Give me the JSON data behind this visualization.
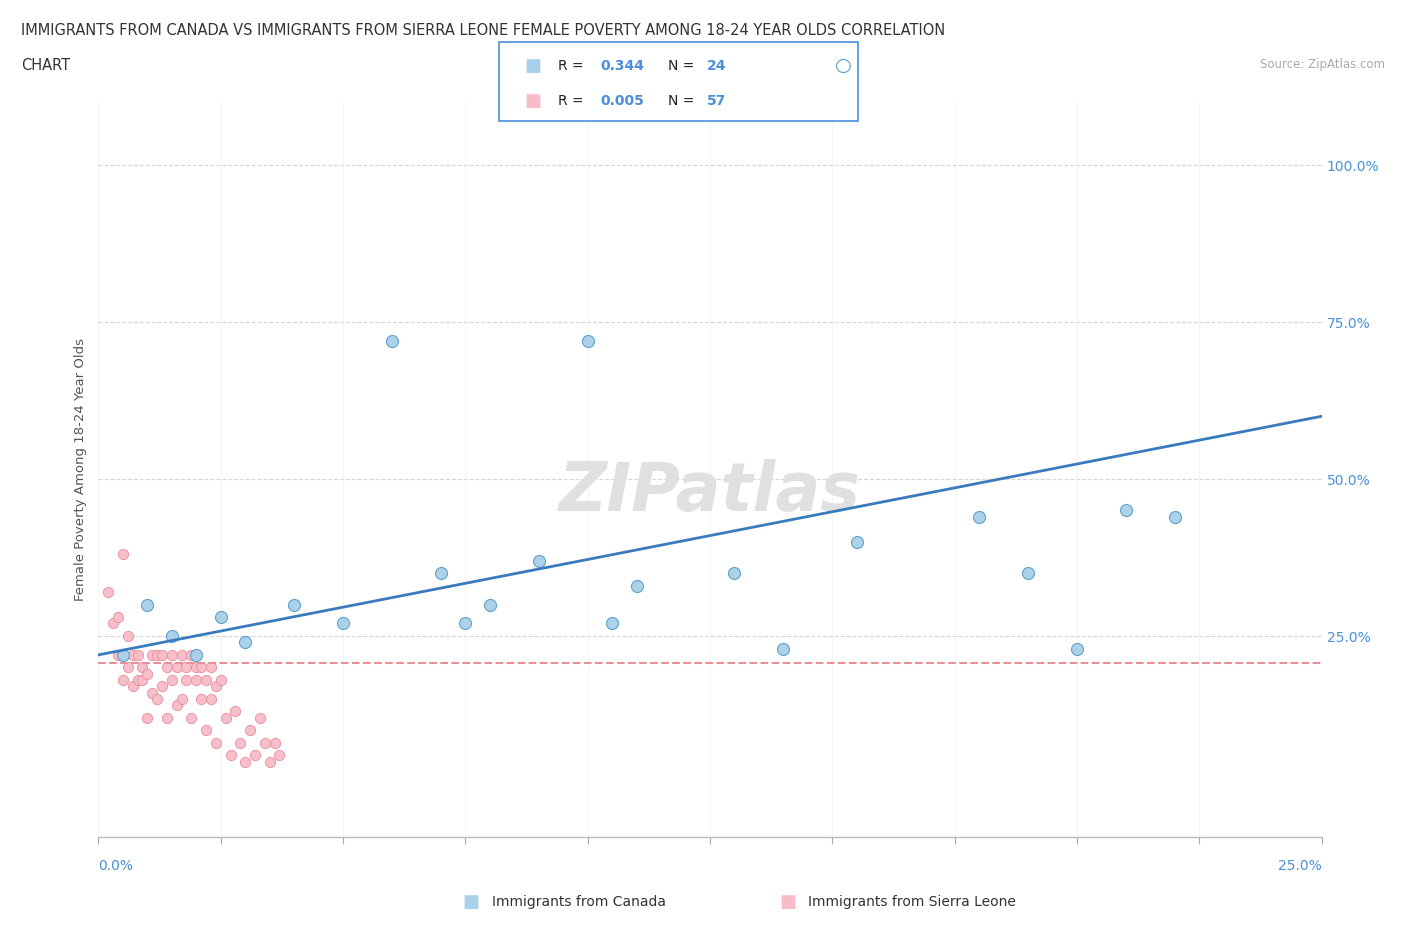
{
  "title_line1": "IMMIGRANTS FROM CANADA VS IMMIGRANTS FROM SIERRA LEONE FEMALE POVERTY AMONG 18-24 YEAR OLDS CORRELATION",
  "title_line2": "CHART",
  "source": "Source: ZipAtlas.com",
  "ylabel": "Female Poverty Among 18-24 Year Olds",
  "ytick_labels": [
    "25.0%",
    "50.0%",
    "75.0%",
    "100.0%"
  ],
  "ytick_values": [
    0.25,
    0.5,
    0.75,
    1.0
  ],
  "xlim": [
    0.0,
    0.25
  ],
  "ylim": [
    -0.07,
    1.1
  ],
  "canada_R": 0.344,
  "canada_N": 24,
  "sierraleone_R": 0.005,
  "sierraleone_N": 57,
  "canada_color": "#a8d0e8",
  "sierraleone_color": "#f7bcc8",
  "canada_edge_color": "#5b9ec9",
  "sierraleone_edge_color": "#e88898",
  "canada_line_color": "#3a7bbf",
  "sierraleone_line_color": "#e8909a",
  "tick_color": "#4a90d9",
  "watermark_color": "#dddddd",
  "legend_edge_color": "#4a90d9",
  "canada_x": [
    0.005,
    0.01,
    0.015,
    0.02,
    0.025,
    0.03,
    0.04,
    0.05,
    0.06,
    0.07,
    0.075,
    0.08,
    0.09,
    0.1,
    0.105,
    0.11,
    0.13,
    0.14,
    0.155,
    0.18,
    0.19,
    0.2,
    0.21,
    0.22
  ],
  "canada_y": [
    0.22,
    0.3,
    0.25,
    0.22,
    0.28,
    0.24,
    0.3,
    0.27,
    0.72,
    0.35,
    0.27,
    0.3,
    0.37,
    0.72,
    0.27,
    0.33,
    0.35,
    0.23,
    0.4,
    0.44,
    0.35,
    0.23,
    0.45,
    0.44
  ],
  "sierraleone_x": [
    0.002,
    0.003,
    0.004,
    0.004,
    0.005,
    0.005,
    0.006,
    0.006,
    0.007,
    0.007,
    0.008,
    0.008,
    0.009,
    0.009,
    0.01,
    0.01,
    0.011,
    0.011,
    0.012,
    0.012,
    0.013,
    0.013,
    0.014,
    0.014,
    0.015,
    0.015,
    0.016,
    0.016,
    0.017,
    0.017,
    0.018,
    0.018,
    0.019,
    0.019,
    0.02,
    0.02,
    0.021,
    0.021,
    0.022,
    0.022,
    0.023,
    0.023,
    0.024,
    0.024,
    0.025,
    0.026,
    0.027,
    0.028,
    0.029,
    0.03,
    0.031,
    0.032,
    0.033,
    0.034,
    0.035,
    0.036,
    0.037
  ],
  "sierraleone_y": [
    0.32,
    0.27,
    0.22,
    0.28,
    0.18,
    0.38,
    0.2,
    0.25,
    0.22,
    0.17,
    0.18,
    0.22,
    0.18,
    0.2,
    0.12,
    0.19,
    0.22,
    0.16,
    0.15,
    0.22,
    0.22,
    0.17,
    0.12,
    0.2,
    0.18,
    0.22,
    0.14,
    0.2,
    0.15,
    0.22,
    0.18,
    0.2,
    0.12,
    0.22,
    0.2,
    0.18,
    0.15,
    0.2,
    0.18,
    0.1,
    0.15,
    0.2,
    0.08,
    0.17,
    0.18,
    0.12,
    0.06,
    0.13,
    0.08,
    0.05,
    0.1,
    0.06,
    0.12,
    0.08,
    0.05,
    0.08,
    0.06
  ],
  "canada_line_x0": 0.0,
  "canada_line_y0": 0.22,
  "canada_line_x1": 0.25,
  "canada_line_y1": 0.6,
  "sl_line_x0": 0.0,
  "sl_line_y0": 0.207,
  "sl_line_x1": 0.25,
  "sl_line_y1": 0.207
}
